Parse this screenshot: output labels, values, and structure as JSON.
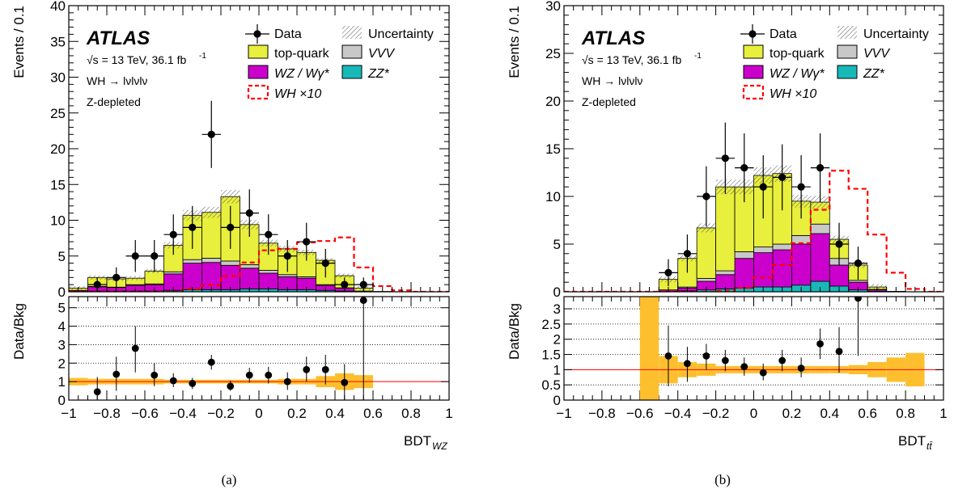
{
  "chart_data": [
    {
      "type": "bar",
      "panel": "a",
      "caption": "(a)",
      "atlas_label": "ATLAS",
      "energy_text": "√s = 13 TeV, 36.1 fb",
      "energy_sup": "-1",
      "process_text": "WH → lνlνlν",
      "region_text": "Z-depleted",
      "ylabel": "Events / 0.1",
      "ratio_ylabel": "Data/Bkg",
      "xlabel_main": "BDT",
      "xlabel_sub": "WZ",
      "xlim": [
        -1,
        1
      ],
      "ylim": [
        0,
        40
      ],
      "yticks": [
        0,
        5,
        10,
        15,
        20,
        25,
        30,
        35,
        40
      ],
      "ratio_ylim": [
        0,
        5.6
      ],
      "ratio_yticks": [
        0,
        1,
        2,
        3,
        4,
        5
      ],
      "xticks": [
        -1,
        -0.8,
        -0.6,
        -0.4,
        -0.2,
        0,
        0.2,
        0.4,
        0.6,
        0.8,
        1
      ],
      "xtick_labels": [
        "−1",
        "−0.8",
        "−0.6",
        "−0.4",
        "−0.2",
        "0",
        "0.2",
        "0.4",
        "0.6",
        "0.8",
        "1"
      ],
      "bin_edges": [
        -1,
        -0.9,
        -0.8,
        -0.7,
        -0.6,
        -0.5,
        -0.4,
        -0.3,
        -0.2,
        -0.1,
        0,
        0.1,
        0.2,
        0.3,
        0.4,
        0.5,
        0.6,
        0.7,
        0.8,
        0.9,
        1
      ],
      "stack": [
        {
          "name": "ZZ*",
          "color": "#17b8b8",
          "values": [
            0.05,
            0.1,
            0.1,
            0.1,
            0.1,
            0.2,
            0.3,
            0.3,
            0.3,
            0.4,
            0.4,
            0.3,
            0.3,
            0.2,
            0.1,
            0,
            0,
            0,
            0,
            0
          ]
        },
        {
          "name": "WZ / Wγ*",
          "color": "#cc00cc",
          "values": [
            0.15,
            0.6,
            0.5,
            0.8,
            0.9,
            2.3,
            3.7,
            3.8,
            3.4,
            2.9,
            2.2,
            1.8,
            1.6,
            0.7,
            0.4,
            0.1,
            0,
            0,
            0,
            0
          ]
        },
        {
          "name": "VVV",
          "color": "#c8c8c8",
          "values": [
            0,
            0.05,
            0.05,
            0.1,
            0.1,
            0.3,
            0.5,
            0.6,
            0.6,
            0.5,
            0.4,
            0.3,
            0.2,
            0.1,
            0.05,
            0,
            0,
            0,
            0,
            0
          ]
        },
        {
          "name": "top-quark",
          "color": "#e8ef3c",
          "values": [
            0.3,
            1.25,
            1.15,
            0.9,
            1.8,
            3.7,
            6.2,
            6.4,
            9.0,
            5.6,
            3.8,
            3.6,
            3.4,
            3.4,
            1.7,
            0.4,
            0.05,
            0,
            0,
            0
          ]
        }
      ],
      "signal": {
        "name": "WH ×10",
        "color": "#ff0000",
        "values": [
          0,
          0,
          0,
          0,
          0,
          0,
          0.4,
          0.9,
          2.2,
          4.1,
          5.8,
          6.0,
          6.9,
          7.1,
          7.6,
          3.4,
          0.8,
          0.2,
          0,
          0
        ]
      },
      "data": {
        "name": "Data",
        "x": [
          -0.85,
          -0.75,
          -0.65,
          -0.55,
          -0.45,
          -0.35,
          -0.25,
          -0.15,
          -0.05,
          0.05,
          0.15,
          0.25,
          0.35,
          0.45,
          0.55
        ],
        "y": [
          1,
          2,
          5,
          5,
          8,
          9,
          22,
          9,
          11,
          8,
          5,
          7,
          4,
          1,
          1
        ]
      },
      "ratio": {
        "x": [
          -0.85,
          -0.75,
          -0.65,
          -0.55,
          -0.45,
          -0.35,
          -0.25,
          -0.15,
          -0.05,
          0.05,
          0.15,
          0.25,
          0.35,
          0.45,
          0.55
        ],
        "y": [
          0.45,
          1.4,
          2.8,
          1.35,
          1.05,
          0.9,
          2.05,
          0.75,
          1.35,
          1.35,
          1.0,
          1.65,
          1.65,
          0.95,
          5.4
        ],
        "err_lo": [
          0.45,
          0.9,
          1.3,
          0.6,
          0.35,
          0.3,
          0.4,
          0.25,
          0.4,
          0.45,
          0.45,
          0.65,
          0.8,
          0.95,
          5.4
        ],
        "err_hi": [
          0.8,
          0.95,
          1.2,
          0.65,
          0.4,
          0.3,
          0.4,
          0.3,
          0.4,
          0.45,
          0.5,
          0.7,
          0.8,
          1.0,
          5.6
        ]
      },
      "ratio_band": [
        0.2,
        0.15,
        0.15,
        0.15,
        0.15,
        0.1,
        0.1,
        0.1,
        0.1,
        0.1,
        0.1,
        0.15,
        0.15,
        0.3,
        0.45,
        0.35,
        0,
        0,
        0,
        0
      ],
      "legend": [
        "Data",
        "Uncertainty",
        "top-quark",
        "VVV",
        "WZ / Wγ*",
        "ZZ*",
        "WH ×10"
      ]
    },
    {
      "type": "bar",
      "panel": "b",
      "caption": "(b)",
      "atlas_label": "ATLAS",
      "energy_text": "√s = 13 TeV, 36.1 fb",
      "energy_sup": "-1",
      "process_text": "WH → lνlνlν",
      "region_text": "Z-depleted",
      "ylabel": "Events / 0.1",
      "ratio_ylabel": "Data/Bkg",
      "xlabel_main": "BDT",
      "xlabel_sub": "tt̄",
      "xlim": [
        -1,
        1
      ],
      "ylim": [
        0,
        30
      ],
      "yticks": [
        0,
        5,
        10,
        15,
        20,
        25,
        30
      ],
      "ratio_ylim": [
        0,
        3.4
      ],
      "ratio_yticks": [
        0,
        0.5,
        1,
        1.5,
        2,
        2.5,
        3
      ],
      "xticks": [
        -1,
        -0.8,
        -0.6,
        -0.4,
        -0.2,
        0,
        0.2,
        0.4,
        0.6,
        0.8,
        1
      ],
      "xtick_labels": [
        "−1",
        "−0.8",
        "−0.6",
        "−0.4",
        "−0.2",
        "0",
        "0.2",
        "0.4",
        "0.6",
        "0.8",
        "1"
      ],
      "bin_edges": [
        -1,
        -0.9,
        -0.8,
        -0.7,
        -0.6,
        -0.5,
        -0.4,
        -0.3,
        -0.2,
        -0.1,
        0,
        0.1,
        0.2,
        0.3,
        0.4,
        0.5,
        0.6,
        0.7,
        0.8,
        0.9,
        1
      ],
      "stack": [
        {
          "name": "ZZ*",
          "color": "#17b8b8",
          "values": [
            0,
            0,
            0,
            0,
            0,
            0.05,
            0.1,
            0.2,
            0.3,
            0.4,
            0.5,
            0.5,
            0.7,
            1.1,
            0.6,
            0.2,
            0.05,
            0,
            0,
            0
          ]
        },
        {
          "name": "WZ / Wγ*",
          "color": "#cc00cc",
          "values": [
            0,
            0,
            0,
            0,
            0,
            0.15,
            0.3,
            0.9,
            1.5,
            3.1,
            3.6,
            3.9,
            4.3,
            5.0,
            2.2,
            0.8,
            0.15,
            0,
            0,
            0
          ]
        },
        {
          "name": "VVV",
          "color": "#c8c8c8",
          "values": [
            0,
            0,
            0,
            0,
            0,
            0,
            0.1,
            0.3,
            0.4,
            0.7,
            0.6,
            0.6,
            0.9,
            1.0,
            0.7,
            0.2,
            0.05,
            0,
            0,
            0
          ]
        },
        {
          "name": "top-quark",
          "color": "#e8ef3c",
          "values": [
            0,
            0,
            0,
            0,
            0,
            1.1,
            3.0,
            5.3,
            8.8,
            6.8,
            7.5,
            7.4,
            3.6,
            2.3,
            2.0,
            1.6,
            0.25,
            0.05,
            0,
            0
          ]
        }
      ],
      "signal": {
        "name": "WH ×10",
        "color": "#ff0000",
        "values": [
          0,
          0,
          0,
          0,
          0,
          0,
          0,
          0,
          0.1,
          0.4,
          1.5,
          2.8,
          5.1,
          8.6,
          12.7,
          10.8,
          6.0,
          2.0,
          0.3,
          0
        ]
      },
      "data": {
        "name": "Data",
        "x": [
          -0.45,
          -0.35,
          -0.25,
          -0.15,
          -0.05,
          0.05,
          0.15,
          0.25,
          0.35,
          0.45,
          0.55
        ],
        "y": [
          2,
          4,
          10,
          14,
          13,
          11,
          12,
          11,
          13,
          5,
          3
        ]
      },
      "ratio": {
        "x": [
          -0.45,
          -0.35,
          -0.25,
          -0.15,
          -0.05,
          0.05,
          0.15,
          0.25,
          0.35,
          0.45,
          0.55
        ],
        "y": [
          1.45,
          1.2,
          1.45,
          1.3,
          1.1,
          0.9,
          1.3,
          1.05,
          1.85,
          1.6,
          3.35
        ],
        "err_lo": [
          1.0,
          0.6,
          0.45,
          0.35,
          0.3,
          0.25,
          0.35,
          0.3,
          0.5,
          0.7,
          1.9
        ],
        "err_hi": [
          1.0,
          0.55,
          0.4,
          0.35,
          0.3,
          0.3,
          0.35,
          0.35,
          0.5,
          0.8,
          1.9
        ]
      },
      "ratio_band": [
        0,
        0,
        0,
        0,
        3.6,
        0.45,
        0.25,
        0.2,
        0.12,
        0.12,
        0.12,
        0.12,
        0.12,
        0.12,
        0.12,
        0.15,
        0.25,
        0.4,
        0.55,
        0
      ],
      "legend": [
        "Data",
        "Uncertainty",
        "top-quark",
        "VVV",
        "WZ / Wγ*",
        "ZZ*",
        "WH ×10"
      ]
    }
  ]
}
